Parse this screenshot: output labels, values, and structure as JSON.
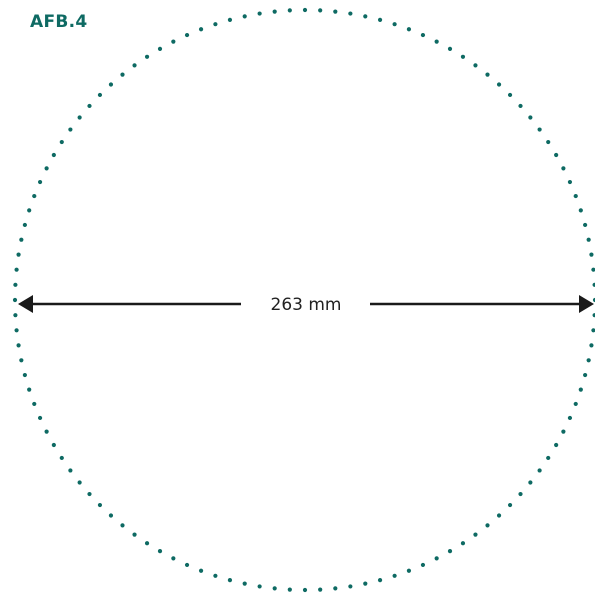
{
  "figure": {
    "label": "AFB.4"
  },
  "measurement": {
    "value": "263 mm"
  },
  "colors": {
    "accent": "#0e6a63",
    "arrow": "#1a1a1a",
    "text": "#222222"
  },
  "icons": {
    "left_arrowhead": "arrowhead-left-icon",
    "right_arrowhead": "arrowhead-right-icon"
  }
}
